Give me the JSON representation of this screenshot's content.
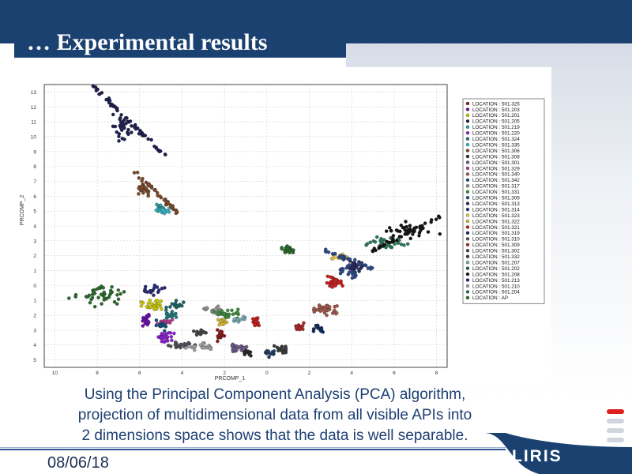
{
  "slide": {
    "title": "… Experimental results",
    "caption_lines": [
      "Using the  Principal Component Analysis (PCA) algorithm,",
      "projection of multidimensional data from all visible APIs into",
      "2 dimensions space shows that the data is well separable."
    ],
    "date": "08/06/18",
    "logo_text": "LIRIS",
    "colors": {
      "header": "#1b4170",
      "caption": "#1d3f73",
      "accent": "#e02020"
    }
  },
  "chart_data": {
    "type": "scatter",
    "xlabel": "PRCOMP_1",
    "ylabel": "PRCOMP_2",
    "xlim": [
      -10.5,
      8.5
    ],
    "ylim": [
      -5.5,
      13.5
    ],
    "x_ticks": [
      -10,
      -8,
      -6,
      -4,
      -2,
      0,
      2,
      4,
      6,
      8
    ],
    "x_tick_labels": [
      "10",
      "8",
      "6",
      "4",
      "2",
      "0",
      "2",
      "4",
      "6",
      "8"
    ],
    "y_ticks": [
      13,
      12,
      11,
      10,
      9,
      8,
      7,
      6,
      5,
      4,
      3,
      2,
      1,
      0,
      -1,
      -2,
      -3,
      -4,
      -5
    ],
    "y_tick_labels": [
      "13",
      "12",
      "11",
      "10",
      "9",
      "8",
      "7",
      "6",
      "5",
      "4",
      "3",
      "2",
      "1",
      "0",
      "1",
      "2",
      "3",
      "4",
      "5"
    ],
    "grid": true,
    "legend_position": "right",
    "series": [
      {
        "name": "LOCATION : 501.325",
        "color": "#8b1a1a",
        "clusters": [
          [
            -2.2,
            -3.4,
            0.3,
            0.4,
            20
          ]
        ]
      },
      {
        "name": "LOCATION : 501.203",
        "color": "#6a0dad",
        "clusters": [
          [
            -5.7,
            -2.3,
            0.3,
            0.5,
            20
          ]
        ]
      },
      {
        "name": "LOCATION : 501.201",
        "color": "#c8c800",
        "clusters": [
          [
            -5.4,
            -1.3,
            0.5,
            0.3,
            25
          ]
        ]
      },
      {
        "name": "LOCATION : 501.205",
        "color": "#1e1e50",
        "clusters": [
          [
            -6.8,
            10.6,
            0.5,
            1.0,
            30
          ]
        ]
      },
      {
        "name": "LOCATION : 501.219",
        "color": "#2aa0a0",
        "clusters": [
          [
            -5.0,
            5.1,
            0.3,
            0.3,
            15
          ]
        ]
      },
      {
        "name": "LOCATION : 501.220",
        "color": "#8c1ed2",
        "clusters": [
          [
            -4.8,
            -3.4,
            0.4,
            0.3,
            25
          ]
        ]
      },
      {
        "name": "LOCATION : 501.324",
        "color": "#1e7878",
        "clusters": [
          [
            -4.6,
            -1.9,
            0.3,
            0.3,
            15
          ]
        ]
      },
      {
        "name": "LOCATION : 501.335",
        "color": "#3cb4c8",
        "clusters": [
          [
            -4.9,
            5.0,
            0.3,
            0.2,
            18
          ]
        ]
      },
      {
        "name": "LOCATION : 501.306",
        "color": "#7a4a2a",
        "clusters": [
          [
            -5.8,
            6.5,
            0.3,
            0.4,
            25
          ]
        ]
      },
      {
        "name": "LOCATION : 501.308",
        "color": "#282828",
        "clusters": [
          [
            -0.9,
            -4.5,
            0.3,
            0.2,
            15
          ]
        ]
      },
      {
        "name": "LOCATION : 501.301",
        "color": "#6a5a8a",
        "clusters": [
          [
            -1.4,
            -4.2,
            0.4,
            0.3,
            25
          ]
        ]
      },
      {
        "name": "LOCATION : 501.329",
        "color": "#b43c8c",
        "clusters": [
          [
            -4.8,
            -2.5,
            0.3,
            0.3,
            15
          ]
        ]
      },
      {
        "name": "LOCATION : 501.340",
        "color": "#a05a4a",
        "clusters": [
          [
            2.8,
            -1.6,
            0.6,
            0.4,
            35
          ]
        ]
      },
      {
        "name": "LOCATION : 501.342",
        "color": "#2a4a8a",
        "clusters": [
          [
            3.9,
            1.0,
            0.5,
            0.5,
            30
          ]
        ]
      },
      {
        "name": "LOCATION : 501.317",
        "color": "#8c8c8c",
        "clusters": [
          [
            -2.4,
            -1.7,
            0.5,
            0.3,
            20
          ]
        ]
      },
      {
        "name": "LOCATION : 501.331",
        "color": "#3c8c3c",
        "clusters": [
          [
            -1.8,
            -1.9,
            0.6,
            0.3,
            25
          ]
        ]
      },
      {
        "name": "LOCATION : 501.309",
        "color": "#14507a",
        "clusters": [
          [
            -5.0,
            -2.7,
            0.3,
            0.3,
            15
          ]
        ]
      },
      {
        "name": "LOCATION : 501.313",
        "color": "#28285a",
        "clusters": [
          [
            4.2,
            1.3,
            0.4,
            0.4,
            20
          ]
        ]
      },
      {
        "name": "LOCATION : 501.314",
        "color": "#1e3c64",
        "clusters": [
          [
            0.1,
            -4.6,
            0.25,
            0.3,
            15
          ]
        ]
      },
      {
        "name": "LOCATION : 501.323",
        "color": "#e6c850",
        "clusters": [
          [
            3.4,
            1.9,
            0.5,
            0.2,
            18
          ]
        ]
      },
      {
        "name": "LOCATION : 501.322",
        "color": "#d2b43c",
        "clusters": [
          [
            -2.1,
            -2.5,
            0.3,
            0.2,
            12
          ]
        ]
      },
      {
        "name": "LOCATION : 501.321",
        "color": "#c81e1e",
        "clusters": [
          [
            3.1,
            0.2,
            0.4,
            0.4,
            30
          ],
          [
            -0.5,
            -2.4,
            0.2,
            0.4,
            15
          ]
        ]
      },
      {
        "name": "LOCATION : 501.319",
        "color": "#0f2a60",
        "clusters": [
          [
            2.4,
            -2.9,
            0.3,
            0.3,
            15
          ]
        ]
      },
      {
        "name": "LOCATION : 501.310",
        "color": "#50505a",
        "clusters": [
          [
            -4.0,
            -4.0,
            0.7,
            0.2,
            25
          ]
        ]
      },
      {
        "name": "LOCATION : 501.309",
        "color": "#aa2a2a",
        "clusters": [
          [
            1.6,
            -2.8,
            0.3,
            0.3,
            15
          ]
        ]
      },
      {
        "name": "LOCATION : 501.302",
        "color": "#464646",
        "clusters": [
          [
            -3.1,
            -3.2,
            0.4,
            0.2,
            15
          ]
        ]
      },
      {
        "name": "LOCATION : 501.332",
        "color": "#3c3c3c",
        "clusters": [
          [
            0.7,
            -4.3,
            0.3,
            0.3,
            18
          ]
        ]
      },
      {
        "name": "LOCATION : 501.207",
        "color": "#78aab4",
        "clusters": [
          [
            -1.3,
            -2.3,
            0.3,
            0.2,
            12
          ]
        ]
      },
      {
        "name": "LOCATION : 501.202",
        "color": "#1e6464",
        "clusters": [
          [
            -4.3,
            -1.3,
            0.4,
            0.3,
            15
          ]
        ]
      },
      {
        "name": "LOCATION : 501.208",
        "color": "#141414",
        "clusters": [
          [
            6.8,
            3.7,
            1.2,
            0.5,
            40
          ]
        ]
      },
      {
        "name": "LOCATION : 501.213",
        "color": "#282878",
        "clusters": [
          [
            -5.3,
            -0.3,
            0.5,
            0.3,
            18
          ]
        ]
      },
      {
        "name": "LOCATION : 501.210",
        "color": "#a0a0a0",
        "clusters": [
          [
            -3.2,
            -4.1,
            0.6,
            0.25,
            25
          ]
        ]
      },
      {
        "name": "LOCATION : 501.204",
        "color": "#2a7a5a",
        "clusters": [
          [
            5.6,
            2.9,
            0.9,
            0.4,
            35
          ]
        ]
      },
      {
        "name": "LOCATION : AP",
        "color": "#2a6a2a",
        "clusters": [
          [
            -7.8,
            -0.6,
            1.3,
            0.7,
            45
          ],
          [
            1.0,
            2.4,
            0.3,
            0.3,
            20
          ]
        ]
      }
    ]
  }
}
